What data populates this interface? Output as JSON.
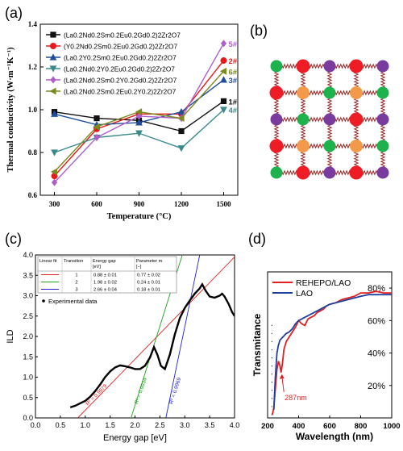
{
  "figure": {
    "panel_labels": [
      "(a)",
      "(b)",
      "(c)",
      "(d)"
    ]
  },
  "chart_data": [
    {
      "panel": "(a)",
      "type": "line",
      "xlabel": "Temperature (°C)",
      "ylabel": "Thermal conductivity (W·m⁻¹K⁻¹)",
      "x": [
        300,
        600,
        900,
        1200,
        1500
      ],
      "xticks": [
        "300",
        "600",
        "900",
        "1200",
        "1500"
      ],
      "xlim": [
        200,
        1600
      ],
      "ylim": [
        0.6,
        1.4
      ],
      "yticks": [
        "0.6",
        "0.8",
        "1.0",
        "1.2",
        "1.4"
      ],
      "legend_position": "top-left",
      "series": [
        {
          "name": "(La0.2Nd0.2Sm0.2Eu0.2Gd0.2)2Zr2O7",
          "label": "1#",
          "color": "#111111",
          "marker": "square",
          "values": [
            0.99,
            0.96,
            0.95,
            0.9,
            1.04
          ]
        },
        {
          "name": "(Y0.2Nd0.2Sm0.2Eu0.2Gd0.2)2Zr2O7",
          "label": "2#",
          "color": "#e41a1c",
          "marker": "circle",
          "values": [
            0.69,
            0.91,
            0.98,
            0.98,
            1.23
          ]
        },
        {
          "name": "(La0.2Y0.2Sm0.2Eu0.2Gd0.2)2Zr2O7",
          "label": "3#",
          "color": "#1f4e9c",
          "marker": "triangle-up",
          "values": [
            0.98,
            0.93,
            0.94,
            0.99,
            1.14
          ]
        },
        {
          "name": "(La0.2Nd0.2Y0.2Eu0.2Gd0.2)2Zr2O7",
          "label": "4#",
          "color": "#3a8a8c",
          "marker": "triangle-down",
          "values": [
            0.8,
            0.87,
            0.89,
            0.82,
            1.0
          ]
        },
        {
          "name": "(La0.2Nd0.2Sm0.2Y0.2Gd0.2)2Zr2O7",
          "label": "5#",
          "color": "#b05fc9",
          "marker": "diamond",
          "values": [
            0.66,
            0.87,
            0.97,
            0.96,
            1.31
          ]
        },
        {
          "name": "(La0.2Nd0.2Sm0.2Eu0.2Y0.2)2Zr2O7",
          "label": "6#",
          "color": "#7a8a1e",
          "marker": "triangle-left",
          "values": [
            0.71,
            0.92,
            0.99,
            0.96,
            1.18
          ]
        }
      ]
    },
    {
      "panel": "(b)",
      "type": "diagram",
      "rows": [
        [
          "green",
          "red",
          "purple",
          "red",
          "purple"
        ],
        [
          "red",
          "orange",
          "green",
          "orange",
          "green"
        ],
        [
          "purple",
          "green",
          "purple",
          "red",
          "purple"
        ],
        [
          "red",
          "orange",
          "green",
          "orange",
          "green"
        ],
        [
          "green",
          "red",
          "purple",
          "red",
          "purple"
        ]
      ],
      "colors": {
        "red": "#ee1c24",
        "orange": "#f39a4a",
        "green": "#1db24b",
        "purple": "#7a3b9e",
        "bond": "#9b2a2a"
      }
    },
    {
      "panel": "(c)",
      "type": "line",
      "xlabel": "Energy gap [eV]",
      "ylabel": "ILD",
      "xlim": [
        0.0,
        4.0
      ],
      "ylim": [
        0.0,
        4.0
      ],
      "xticks": [
        "0.0",
        "0.5",
        "1.0",
        "1.5",
        "2.0",
        "2.5",
        "3.0",
        "3.5",
        "4.0"
      ],
      "yticks": [
        "0.0",
        "0.5",
        "1.0",
        "1.5",
        "2.0",
        "2.5",
        "3.0",
        "3.5",
        "4.0"
      ],
      "legend": "Experimental data",
      "table": {
        "headers": [
          "Linear fit",
          "Transition",
          "Energy gap\n[eV]",
          "Parameter m\n[−]"
        ],
        "rows": [
          {
            "color": "#e02020",
            "transition": "1",
            "gap": "0.88 ± 0.01",
            "m": "0.77 ± 0.02"
          },
          {
            "color": "#20a020",
            "transition": "2",
            "gap": "1.98 ± 0.02",
            "m": "0.24 ± 0.01"
          },
          {
            "color": "#2020d0",
            "transition": "3",
            "gap": "2.66 ± 0.04",
            "m": "0.18 ± 0.01"
          }
        ]
      },
      "fits": [
        {
          "color": "#e02020",
          "label": "R² = 0.9879",
          "points": [
            [
              0.85,
              0.0
            ],
            [
              4.0,
              3.95
            ]
          ]
        },
        {
          "color": "#20a020",
          "label": "R² = 0.9934",
          "points": [
            [
              1.92,
              0.0
            ],
            [
              2.95,
              4.0
            ]
          ]
        },
        {
          "color": "#2020d0",
          "label": "R² = 0.9969",
          "points": [
            [
              2.62,
              0.0
            ],
            [
              3.3,
              4.0
            ]
          ]
        }
      ],
      "data": [
        [
          0.7,
          0.26
        ],
        [
          0.8,
          0.3
        ],
        [
          0.9,
          0.36
        ],
        [
          1.0,
          0.42
        ],
        [
          1.1,
          0.52
        ],
        [
          1.2,
          0.66
        ],
        [
          1.3,
          0.82
        ],
        [
          1.4,
          1.0
        ],
        [
          1.5,
          1.14
        ],
        [
          1.6,
          1.24
        ],
        [
          1.7,
          1.29
        ],
        [
          1.8,
          1.27
        ],
        [
          1.9,
          1.24
        ],
        [
          2.0,
          1.2
        ],
        [
          2.1,
          1.2
        ],
        [
          2.2,
          1.28
        ],
        [
          2.3,
          1.48
        ],
        [
          2.38,
          1.74
        ],
        [
          2.45,
          1.55
        ],
        [
          2.52,
          1.28
        ],
        [
          2.6,
          1.2
        ],
        [
          2.7,
          1.55
        ],
        [
          2.8,
          2.05
        ],
        [
          2.9,
          2.45
        ],
        [
          3.0,
          2.7
        ],
        [
          3.1,
          2.88
        ],
        [
          3.2,
          3.05
        ],
        [
          3.3,
          3.18
        ],
        [
          3.35,
          3.28
        ],
        [
          3.42,
          3.12
        ],
        [
          3.5,
          2.98
        ],
        [
          3.6,
          2.95
        ],
        [
          3.7,
          3.0
        ],
        [
          3.75,
          3.05
        ],
        [
          3.8,
          2.98
        ],
        [
          3.88,
          2.8
        ],
        [
          3.95,
          2.6
        ],
        [
          4.0,
          2.5
        ]
      ]
    },
    {
      "panel": "(d)",
      "type": "line",
      "xlabel": "Wavelength (nm)",
      "ylabel": "Transmitance",
      "xlim": [
        200,
        1000
      ],
      "xticks": [
        "200",
        "400",
        "600",
        "800",
        "1000"
      ],
      "ylim": [
        0,
        90
      ],
      "yticks": [
        {
          "label": "20%",
          "value": 20
        },
        {
          "label": "40%",
          "value": 40
        },
        {
          "label": "60%",
          "value": 60
        },
        {
          "label": "80%",
          "value": 80
        }
      ],
      "annotation": {
        "text": "287nm",
        "x": 287,
        "y": 28
      },
      "series": [
        {
          "name": "REHEPO/LAO",
          "color": "#e02020",
          "x": [
            230,
            240,
            250,
            260,
            270,
            280,
            287,
            295,
            305,
            320,
            340,
            360,
            380,
            400,
            420,
            440,
            460,
            480,
            500,
            520,
            540,
            560,
            580,
            600,
            640,
            680,
            720,
            760,
            800,
            850,
            900,
            950,
            1000
          ],
          "values": [
            2,
            6,
            18,
            30,
            35,
            32,
            28,
            33,
            42,
            47,
            50,
            53,
            56,
            60,
            58,
            57,
            61,
            62,
            63,
            65,
            66,
            67,
            69,
            70,
            71,
            73,
            74,
            75,
            77,
            77,
            78,
            77,
            77
          ]
        },
        {
          "name": "LAO",
          "color": "#2040a0",
          "x": [
            240,
            250,
            260,
            270,
            280,
            290,
            300,
            320,
            340,
            360,
            380,
            400,
            420,
            440,
            460,
            480,
            500,
            520,
            540,
            560,
            580,
            600,
            640,
            680,
            720,
            760,
            800,
            850,
            900,
            950,
            1000
          ],
          "values": [
            5,
            25,
            40,
            45,
            48,
            49,
            50,
            52,
            53,
            55,
            58,
            60,
            61,
            62,
            63,
            64,
            65,
            66,
            67,
            68,
            69,
            70,
            71,
            72,
            73,
            74,
            75,
            76,
            76,
            76,
            76
          ]
        }
      ]
    }
  ]
}
